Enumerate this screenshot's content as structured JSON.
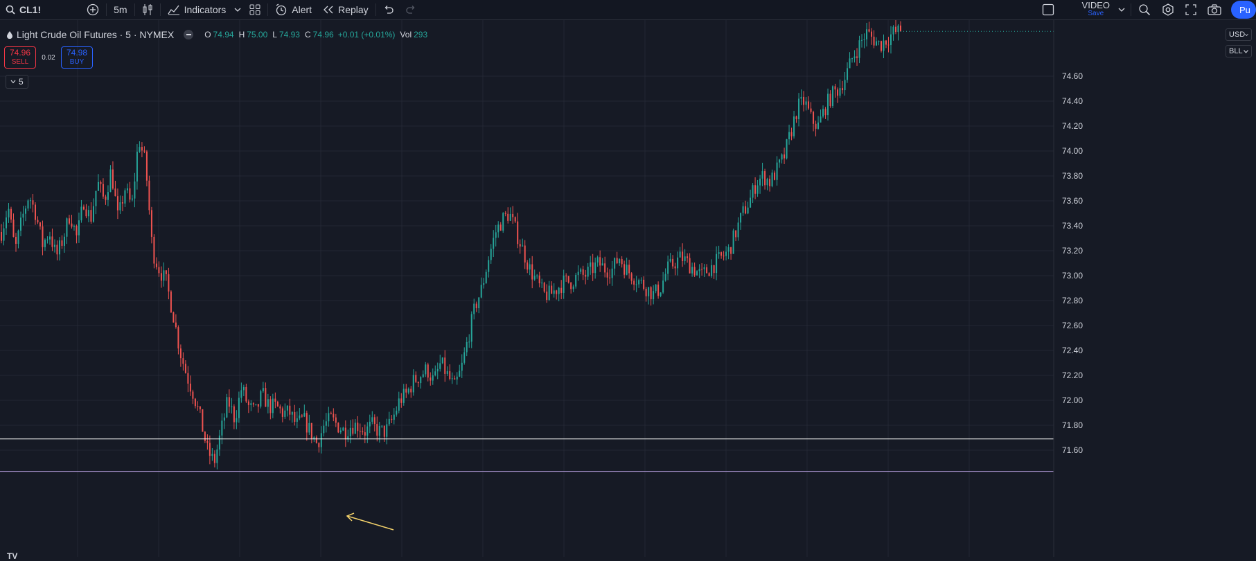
{
  "toolbar": {
    "symbol": "CL1!",
    "interval": "5m",
    "indicators_label": "Indicators",
    "alert_label": "Alert",
    "replay_label": "Replay",
    "video_label": "VIDEO",
    "video_sub": "Save",
    "publish_label": "Pu"
  },
  "legend": {
    "title": "Light Crude Oil Futures · 5 · NYMEX",
    "o_label": "O",
    "o_value": "74.94",
    "h_label": "H",
    "h_value": "75.00",
    "l_label": "L",
    "l_value": "74.93",
    "c_label": "C",
    "c_value": "74.96",
    "change": "+0.01 (+0.01%)",
    "vol_label": "Vol",
    "vol_value": "293"
  },
  "trade": {
    "sell_price": "74.96",
    "sell_label": "SELL",
    "spread": "0.02",
    "buy_price": "74.98",
    "buy_label": "BUY"
  },
  "indicator_toggle": "5",
  "scale": {
    "currency": "USD",
    "unit": "BLL"
  },
  "colors": {
    "up": "#26a69a",
    "down": "#ef5350",
    "bg": "#161a25",
    "grid": "#232734",
    "hline": "#ffffff",
    "lowline": "#b39ddb",
    "arrow": "#f5d36b"
  },
  "chart_data": {
    "type": "candlestick",
    "ylim": [
      71.43,
      75.06
    ],
    "ytick_labels": [
      "74.60",
      "74.40",
      "74.20",
      "74.00",
      "73.80",
      "73.60",
      "73.40",
      "73.20",
      "73.00",
      "72.80",
      "72.60",
      "72.40",
      "72.20",
      "72.00",
      "71.80",
      "71.60"
    ],
    "horizontal_lines": [
      {
        "price": 71.69,
        "label": "71.69"
      },
      {
        "price": 71.43,
        "label": "71.43"
      }
    ],
    "last_price": 74.96,
    "path": [
      73.35,
      73.55,
      73.2,
      73.45,
      73.65,
      73.5,
      73.25,
      73.35,
      73.15,
      73.3,
      73.5,
      73.3,
      73.6,
      73.45,
      73.75,
      73.6,
      73.85,
      73.45,
      73.7,
      73.55,
      74.1,
      73.9,
      73.2,
      73.05,
      72.95,
      72.7,
      72.4,
      72.2,
      72.05,
      71.85,
      71.6,
      71.5,
      71.75,
      72.0,
      71.85,
      72.1,
      71.95,
      71.9,
      72.05,
      71.95,
      71.95,
      71.9,
      71.9,
      71.8,
      71.85,
      71.75,
      71.65,
      71.8,
      71.85,
      71.8,
      71.75,
      71.8,
      71.8,
      71.75,
      71.8,
      71.75,
      71.75,
      71.85,
      72.0,
      72.05,
      72.15,
      72.2,
      72.25,
      72.15,
      72.3,
      72.2,
      72.1,
      72.25,
      72.5,
      72.75,
      72.9,
      73.15,
      73.35,
      73.45,
      73.5,
      73.35,
      73.2,
      73.05,
      72.95,
      72.85,
      72.85,
      72.9,
      72.95,
      72.95,
      73.0,
      73.0,
      73.05,
      73.1,
      73.05,
      73.05,
      73.15,
      73.05,
      73.0,
      72.95,
      72.9,
      72.85,
      72.9,
      73.05,
      73.1,
      73.15,
      73.1,
      73.05,
      73.0,
      73.05,
      73.1,
      73.15,
      73.2,
      73.35,
      73.5,
      73.6,
      73.75,
      73.8,
      73.75,
      73.85,
      73.95,
      74.15,
      74.35,
      74.4,
      74.25,
      74.2,
      74.35,
      74.45,
      74.5,
      74.6,
      74.75,
      74.85,
      74.95,
      74.9,
      74.85,
      74.9,
      74.95,
      74.96
    ]
  },
  "annotation": {
    "arrow": "arrow pointing to local low near 71.63"
  },
  "logo": "TV"
}
